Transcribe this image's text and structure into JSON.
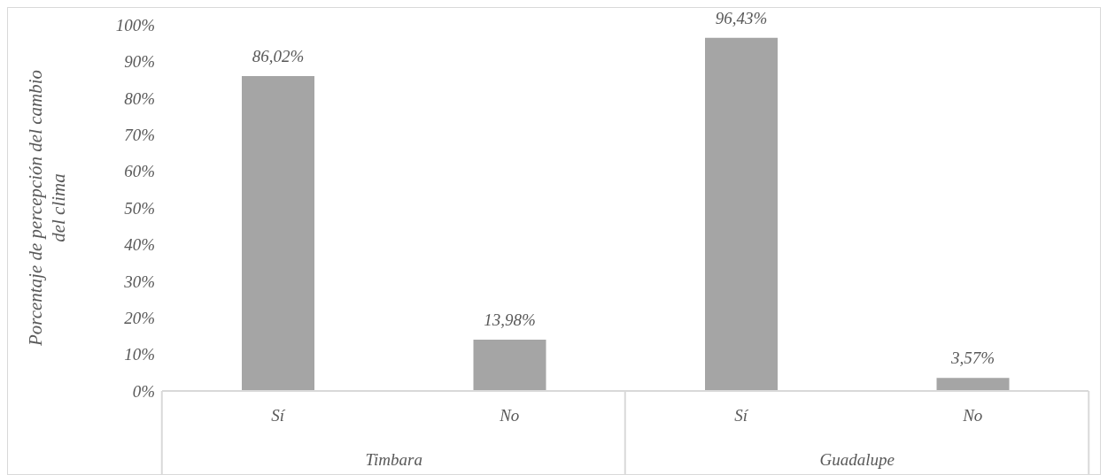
{
  "chart_data": {
    "type": "bar",
    "ylabel": "Porcentaje de percepción del cambio del clima",
    "categories": [
      "Sí",
      "No",
      "Sí",
      "No"
    ],
    "values": [
      86.02,
      13.98,
      96.43,
      3.57
    ],
    "color": "#a5a5a5",
    "value_labels": [
      "86,02%",
      "13,98%",
      "96,43%",
      "3,57%"
    ],
    "ylim": [
      0,
      100
    ],
    "yticks": [
      {
        "value": 0,
        "label": "0%"
      },
      {
        "value": 10,
        "label": "10%"
      },
      {
        "value": 20,
        "label": "20%"
      },
      {
        "value": 30,
        "label": "30%"
      },
      {
        "value": 40,
        "label": "40%"
      },
      {
        "value": 50,
        "label": "50%"
      },
      {
        "value": 60,
        "label": "60%"
      },
      {
        "value": 70,
        "label": "70%"
      },
      {
        "value": 80,
        "label": "80%"
      },
      {
        "value": 90,
        "label": "90%"
      },
      {
        "value": 100,
        "label": "100%"
      }
    ],
    "annotations": [
      "Timbara",
      "Guadalupe"
    ],
    "grid": false,
    "legend": false
  }
}
